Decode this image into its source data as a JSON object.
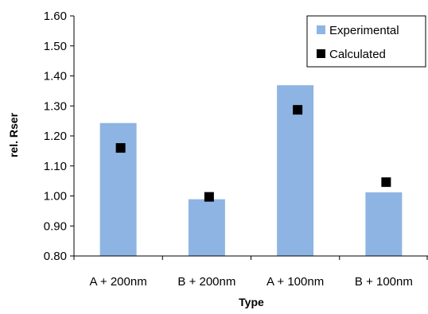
{
  "chart_data": {
    "type": "bar",
    "title": "",
    "xlabel": "Type",
    "ylabel": "rel. Rser",
    "categories": [
      "A + 200nm",
      "B + 200nm",
      "A + 100nm",
      "B + 100nm"
    ],
    "ylim": [
      0.8,
      1.6
    ],
    "yticks": [
      "0.80",
      "0.90",
      "1.00",
      "1.10",
      "1.20",
      "1.30",
      "1.40",
      "1.50",
      "1.60"
    ],
    "grid": false,
    "legend_position": "top-right",
    "series": [
      {
        "name": "Experimental",
        "kind": "bar",
        "color": "#8EB4E3",
        "values": [
          1.243,
          0.989,
          1.369,
          1.012
        ]
      },
      {
        "name": "Calculated",
        "kind": "marker",
        "color": "#000000",
        "values": [
          1.16,
          0.997,
          1.287,
          1.046
        ]
      }
    ]
  }
}
